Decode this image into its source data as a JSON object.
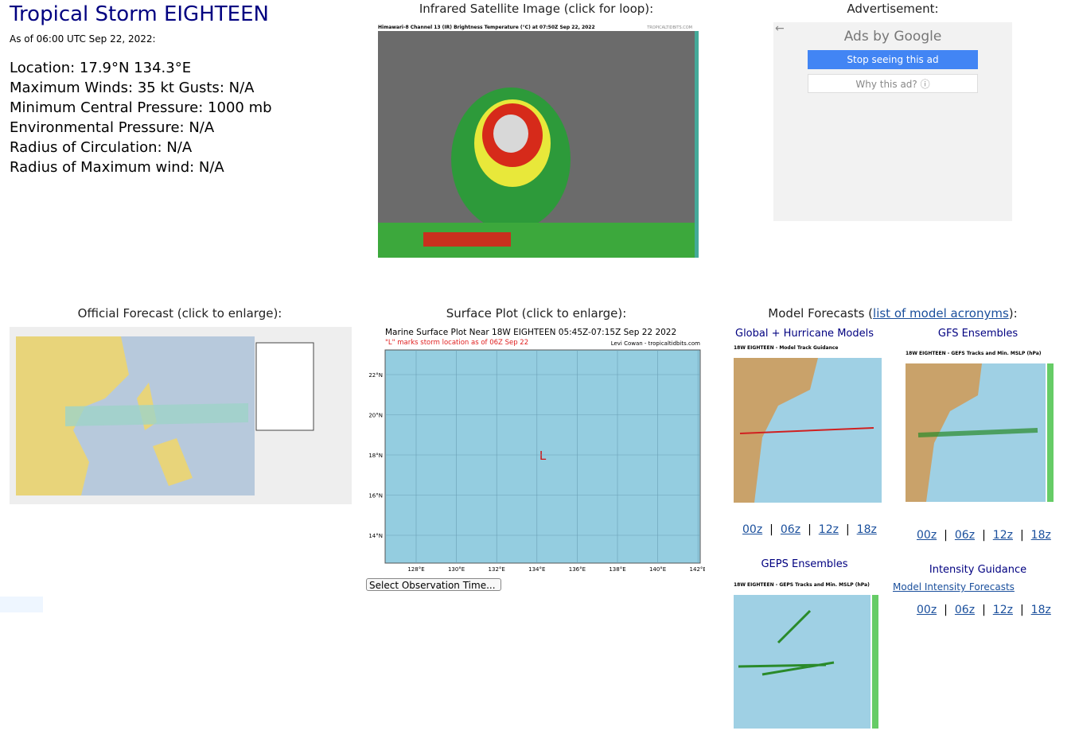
{
  "header": {
    "title": "Tropical Storm EIGHTEEN",
    "as_of": "As of 06:00 UTC Sep 22, 2022:"
  },
  "info": [
    "Location: 17.9°N 134.3°E",
    "Maximum Winds: 35 kt  Gusts: N/A",
    "Minimum Central Pressure: 1000 mb",
    "Environmental Pressure: N/A",
    "Radius of Circulation: N/A",
    "Radius of Maximum wind: N/A"
  ],
  "satellite": {
    "heading": "Infrared Satellite Image (click for loop):",
    "image_title": "Himawari-8 Channel 13 (IR) Brightness Temperature (°C) at 07:50Z Sep 22, 2022",
    "credit": "TROPICALTIDBITS.COM"
  },
  "ad": {
    "heading": "Advertisement:",
    "ads_by": "Ads by Google",
    "stop": "Stop seeing this ad",
    "why": "Why this ad? ⓘ"
  },
  "official": {
    "heading": "Official Forecast (click to enlarge):"
  },
  "surface": {
    "heading": "Surface Plot (click to enlarge):",
    "plot_title": "Marine Surface Plot Near 18W EIGHTEEN 05:45Z-07:15Z Sep 22 2022",
    "note": "\"L\" marks storm location as of 06Z Sep 22",
    "credit": "Levi Cowan - tropicaltidbits.com",
    "marker": "L",
    "yticks": [
      "22°N",
      "20°N",
      "18°N",
      "16°N",
      "14°N"
    ],
    "xticks": [
      "128°E",
      "130°E",
      "132°E",
      "134°E",
      "136°E",
      "138°E",
      "140°E",
      "142°E"
    ],
    "select": "Select Observation Time..."
  },
  "models": {
    "heading_start": "Model Forecasts (",
    "link": "list of model acronyms",
    "heading_end": "):",
    "separator": "|",
    "global": {
      "heading": "Global + Hurricane Models",
      "image_title": "18W EIGHTEEN - Model Track Guidance",
      "runs": [
        "00z",
        "06z",
        "12z",
        "18z"
      ]
    },
    "gfs": {
      "heading": "GFS Ensembles",
      "image_title": "18W EIGHTEEN - GEFS Tracks and Min. MSLP (hPa)",
      "runs": [
        "00z",
        "06z",
        "12z",
        "18z"
      ]
    },
    "geps": {
      "heading": "GEPS Ensembles",
      "image_title": "18W EIGHTEEN - GEPS Tracks and Min. MSLP (hPa)"
    },
    "intensity": {
      "heading": "Intensity Guidance",
      "link": "Model Intensity Forecasts",
      "runs": [
        "00z",
        "06z",
        "12z",
        "18z"
      ]
    }
  }
}
